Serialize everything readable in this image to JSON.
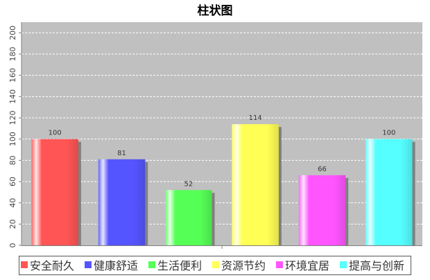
{
  "chart_data": {
    "type": "bar",
    "title": "柱状图",
    "xlabel": "",
    "ylabel": "",
    "categories": [
      "安全耐久",
      "健康舒适",
      "生活便利",
      "资源节约",
      "环境宜居",
      "提高与创新"
    ],
    "values": [
      100,
      81,
      52,
      114,
      66,
      100
    ],
    "data_labels": [
      "100",
      "81",
      "52",
      "114",
      "66",
      "100"
    ],
    "colors": [
      "#ff5555",
      "#5555ff",
      "#55ff55",
      "#ffff55",
      "#ff55ff",
      "#55ffff"
    ],
    "ylim": [
      0,
      210
    ],
    "yticks": [
      0,
      20,
      40,
      60,
      80,
      100,
      120,
      140,
      160,
      180,
      200
    ],
    "ytick_labels": [
      "0",
      "20",
      "40",
      "60",
      "80",
      "100",
      "120",
      "140",
      "160",
      "180",
      "200"
    ],
    "grid": true,
    "legend_position": "bottom",
    "plot_background": "#c0c0c0"
  }
}
